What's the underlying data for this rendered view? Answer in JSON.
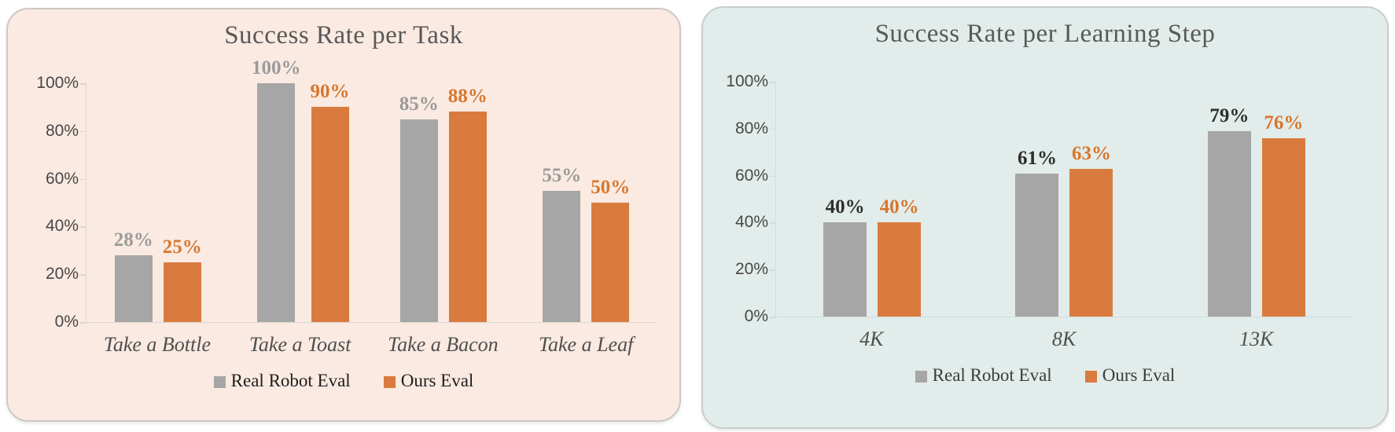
{
  "page": {
    "background": "#ffffff"
  },
  "chart_data": [
    {
      "type": "bar",
      "title": "Success Rate per Task",
      "panel": {
        "bg": "#FAEAE2",
        "border": "#CFC8C2"
      },
      "title_color": "#595959",
      "axis_color": "#DDD5CF",
      "tick_label_color": "#484848",
      "category_label_color": "#4F4F4F",
      "categories": [
        "Take a Bottle",
        "Take a Toast",
        "Take a Bacon",
        "Take a Leaf"
      ],
      "series": [
        {
          "name": "Real Robot Eval",
          "color": "#A6A6A6",
          "label_color": "#9B9B9B",
          "values": [
            28,
            100,
            85,
            55
          ],
          "labels": [
            "28%",
            "100%",
            "85%",
            "55%"
          ]
        },
        {
          "name": "Ours Eval",
          "color": "#D97B3E",
          "label_color": "#D8772E",
          "values": [
            25,
            90,
            88,
            50
          ],
          "labels": [
            "25%",
            "90%",
            "88%",
            "50%"
          ]
        }
      ],
      "y_ticks": [
        {
          "label": "100%",
          "value": 100
        },
        {
          "label": "80%",
          "value": 80
        },
        {
          "label": "60%",
          "value": 60
        },
        {
          "label": "40%",
          "value": 40
        },
        {
          "label": "20%",
          "value": 20
        },
        {
          "label": "0%",
          "value": 0
        }
      ],
      "ylim": [
        0,
        100
      ],
      "grid": false,
      "legend": {
        "position": "bottom",
        "text_color": "#1E1E1E",
        "items": [
          "Real Robot Eval",
          "Ours Eval"
        ]
      }
    },
    {
      "type": "bar",
      "title": "Success Rate per Learning Step",
      "panel": {
        "bg": "#E2ECEA",
        "border": "#C6CFCD"
      },
      "title_color": "#595959",
      "axis_color": "#D2DDDB",
      "tick_label_color": "#484848",
      "category_label_color": "#4F4F4F",
      "categories": [
        "4K",
        "8K",
        "13K"
      ],
      "series": [
        {
          "name": "Real Robot Eval",
          "color": "#A6A6A6",
          "label_color": "#2E2E2E",
          "values": [
            40,
            61,
            79
          ],
          "labels": [
            "40%",
            "61%",
            "79%"
          ]
        },
        {
          "name": "Ours Eval",
          "color": "#D97B3E",
          "label_color": "#D8772E",
          "values": [
            40,
            63,
            76
          ],
          "labels": [
            "40%",
            "63%",
            "76%"
          ]
        }
      ],
      "y_ticks": [
        {
          "label": "100%",
          "value": 100
        },
        {
          "label": "80%",
          "value": 80
        },
        {
          "label": "60%",
          "value": 60
        },
        {
          "label": "40%",
          "value": 40
        },
        {
          "label": "20%",
          "value": 20
        },
        {
          "label": "0%",
          "value": 0
        }
      ],
      "ylim": [
        0,
        100
      ],
      "grid": false,
      "legend": {
        "position": "bottom",
        "text_color": "#3C3C3C",
        "items": [
          "Real Robot Eval",
          "Ours Eval"
        ]
      }
    }
  ]
}
